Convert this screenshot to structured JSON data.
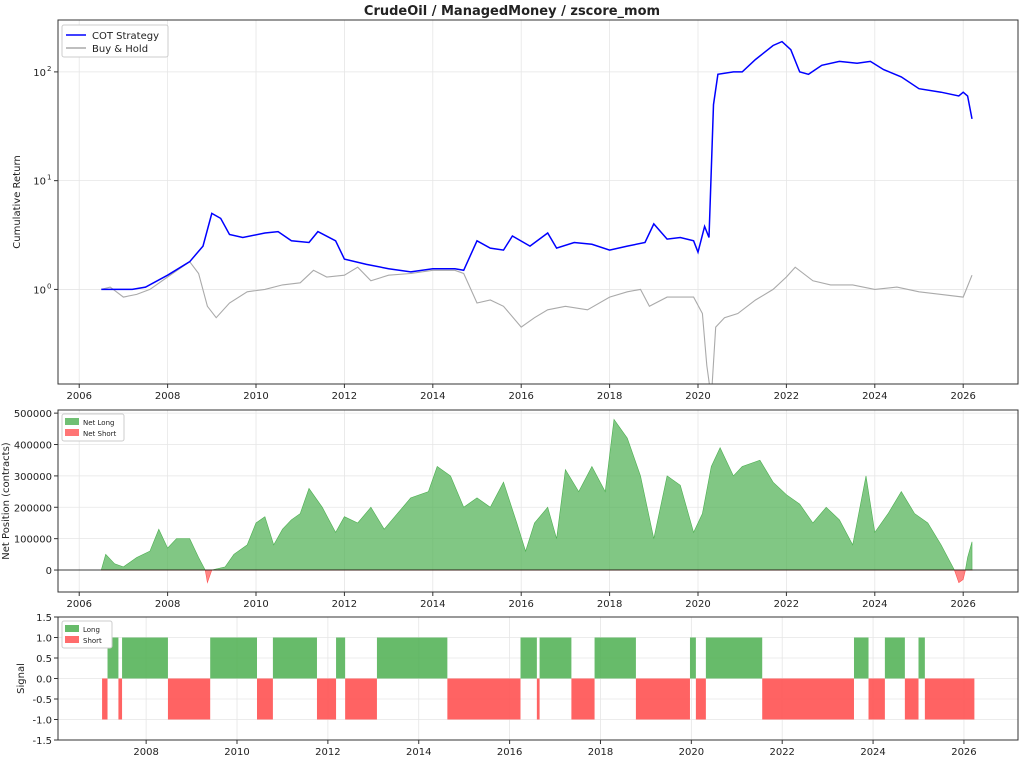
{
  "title": "CrudeOil / ManagedMoney / zscore_mom",
  "colors": {
    "strategy": "#0000ff",
    "buyhold": "#aaaaaa",
    "long": "#4caf50",
    "short": "#ff5252",
    "grid": "#e6e6e6"
  },
  "chart_data": [
    {
      "type": "line",
      "ylabel": "Cumulative Return",
      "yscale": "log",
      "ylim": [
        0.135,
        300
      ],
      "xlim": [
        2005.52,
        2027.24
      ],
      "yticks": [
        {
          "v": 1,
          "label": "10",
          "exp": "0"
        },
        {
          "v": 10,
          "label": "10",
          "exp": "1"
        },
        {
          "v": 100,
          "label": "10",
          "exp": "2"
        }
      ],
      "xticks": [
        "2006",
        "2008",
        "2010",
        "2012",
        "2014",
        "2016",
        "2018",
        "2020",
        "2022",
        "2024",
        "2026"
      ],
      "grid": true,
      "legend_position": "top-left",
      "series": [
        {
          "name": "COT Strategy",
          "color_key": "strategy",
          "points": [
            [
              2006.5,
              1.0
            ],
            [
              2007.2,
              1.0
            ],
            [
              2007.5,
              1.05
            ],
            [
              2008,
              1.35
            ],
            [
              2008.5,
              1.8
            ],
            [
              2008.8,
              2.5
            ],
            [
              2009.0,
              5.0
            ],
            [
              2009.2,
              4.5
            ],
            [
              2009.4,
              3.2
            ],
            [
              2009.7,
              3.0
            ],
            [
              2010.2,
              3.3
            ],
            [
              2010.5,
              3.4
            ],
            [
              2010.8,
              2.8
            ],
            [
              2011.2,
              2.7
            ],
            [
              2011.4,
              3.4
            ],
            [
              2011.8,
              2.8
            ],
            [
              2012.0,
              1.9
            ],
            [
              2012.5,
              1.7
            ],
            [
              2013,
              1.55
            ],
            [
              2013.5,
              1.45
            ],
            [
              2014,
              1.55
            ],
            [
              2014.5,
              1.55
            ],
            [
              2014.7,
              1.5
            ],
            [
              2015.0,
              2.8
            ],
            [
              2015.3,
              2.4
            ],
            [
              2015.6,
              2.3
            ],
            [
              2015.8,
              3.1
            ],
            [
              2016.2,
              2.5
            ],
            [
              2016.6,
              3.3
            ],
            [
              2016.8,
              2.4
            ],
            [
              2017.2,
              2.7
            ],
            [
              2017.6,
              2.6
            ],
            [
              2018,
              2.3
            ],
            [
              2018.4,
              2.5
            ],
            [
              2018.8,
              2.7
            ],
            [
              2019.0,
              4.0
            ],
            [
              2019.3,
              2.9
            ],
            [
              2019.6,
              3.0
            ],
            [
              2019.9,
              2.8
            ],
            [
              2020.0,
              2.2
            ],
            [
              2020.15,
              3.8
            ],
            [
              2020.25,
              3.0
            ],
            [
              2020.35,
              50
            ],
            [
              2020.45,
              95
            ],
            [
              2020.8,
              100
            ],
            [
              2021,
              100
            ],
            [
              2021.3,
              130
            ],
            [
              2021.7,
              175
            ],
            [
              2021.9,
              190
            ],
            [
              2022.1,
              160
            ],
            [
              2022.3,
              100
            ],
            [
              2022.5,
              95
            ],
            [
              2022.8,
              115
            ],
            [
              2023.2,
              125
            ],
            [
              2023.6,
              120
            ],
            [
              2023.9,
              125
            ],
            [
              2024.2,
              105
            ],
            [
              2024.6,
              90
            ],
            [
              2025,
              70
            ],
            [
              2025.5,
              65
            ],
            [
              2025.9,
              60
            ],
            [
              2026.0,
              65
            ],
            [
              2026.1,
              60
            ],
            [
              2026.2,
              37
            ]
          ]
        },
        {
          "name": "Buy & Hold",
          "color_key": "buyhold",
          "points": [
            [
              2006.5,
              1.0
            ],
            [
              2006.7,
              1.05
            ],
            [
              2007,
              0.85
            ],
            [
              2007.3,
              0.9
            ],
            [
              2007.6,
              1.0
            ],
            [
              2008,
              1.3
            ],
            [
              2008.5,
              1.8
            ],
            [
              2008.7,
              1.4
            ],
            [
              2008.9,
              0.7
            ],
            [
              2009.1,
              0.55
            ],
            [
              2009.4,
              0.75
            ],
            [
              2009.8,
              0.95
            ],
            [
              2010.2,
              1.0
            ],
            [
              2010.6,
              1.1
            ],
            [
              2011.0,
              1.15
            ],
            [
              2011.3,
              1.5
            ],
            [
              2011.6,
              1.3
            ],
            [
              2012.0,
              1.35
            ],
            [
              2012.3,
              1.6
            ],
            [
              2012.6,
              1.2
            ],
            [
              2013,
              1.35
            ],
            [
              2013.5,
              1.4
            ],
            [
              2014,
              1.5
            ],
            [
              2014.5,
              1.5
            ],
            [
              2014.7,
              1.4
            ],
            [
              2015.0,
              0.75
            ],
            [
              2015.3,
              0.8
            ],
            [
              2015.6,
              0.7
            ],
            [
              2016.0,
              0.45
            ],
            [
              2016.3,
              0.55
            ],
            [
              2016.6,
              0.65
            ],
            [
              2017,
              0.7
            ],
            [
              2017.5,
              0.65
            ],
            [
              2018,
              0.85
            ],
            [
              2018.4,
              0.95
            ],
            [
              2018.7,
              1.0
            ],
            [
              2018.9,
              0.7
            ],
            [
              2019.3,
              0.85
            ],
            [
              2019.7,
              0.85
            ],
            [
              2019.9,
              0.85
            ],
            [
              2020.1,
              0.6
            ],
            [
              2020.2,
              0.2
            ],
            [
              2020.3,
              0.1
            ],
            [
              2020.4,
              0.45
            ],
            [
              2020.6,
              0.55
            ],
            [
              2020.9,
              0.6
            ],
            [
              2021.3,
              0.8
            ],
            [
              2021.7,
              1.0
            ],
            [
              2022.0,
              1.3
            ],
            [
              2022.2,
              1.6
            ],
            [
              2022.6,
              1.2
            ],
            [
              2023,
              1.1
            ],
            [
              2023.5,
              1.1
            ],
            [
              2024,
              1.0
            ],
            [
              2024.5,
              1.05
            ],
            [
              2025,
              0.95
            ],
            [
              2025.5,
              0.9
            ],
            [
              2026,
              0.85
            ],
            [
              2026.2,
              1.35
            ]
          ]
        }
      ]
    },
    {
      "type": "area",
      "ylabel": "Net Position (contracts)",
      "ylim": [
        -70000,
        510000
      ],
      "xlim": [
        2005.52,
        2027.24
      ],
      "yticks": [
        "0",
        "100000",
        "200000",
        "300000",
        "400000",
        "500000"
      ],
      "xticks": [
        "2006",
        "2008",
        "2010",
        "2012",
        "2014",
        "2016",
        "2018",
        "2020",
        "2022",
        "2024",
        "2026"
      ],
      "grid": true,
      "legend_position": "top-left",
      "legend": [
        "Net Long",
        "Net Short"
      ],
      "points": [
        [
          2006.5,
          0
        ],
        [
          2006.6,
          50000
        ],
        [
          2006.8,
          20000
        ],
        [
          2007.0,
          10000
        ],
        [
          2007.3,
          40000
        ],
        [
          2007.6,
          60000
        ],
        [
          2007.8,
          130000
        ],
        [
          2008.0,
          70000
        ],
        [
          2008.2,
          100000
        ],
        [
          2008.5,
          100000
        ],
        [
          2008.7,
          40000
        ],
        [
          2008.85,
          0
        ],
        [
          2008.9,
          -40000
        ],
        [
          2009.0,
          0
        ],
        [
          2009.3,
          10000
        ],
        [
          2009.5,
          50000
        ],
        [
          2009.8,
          80000
        ],
        [
          2010.0,
          150000
        ],
        [
          2010.2,
          170000
        ],
        [
          2010.4,
          80000
        ],
        [
          2010.6,
          130000
        ],
        [
          2010.8,
          160000
        ],
        [
          2011.0,
          180000
        ],
        [
          2011.2,
          260000
        ],
        [
          2011.5,
          200000
        ],
        [
          2011.8,
          120000
        ],
        [
          2012.0,
          170000
        ],
        [
          2012.3,
          150000
        ],
        [
          2012.6,
          200000
        ],
        [
          2012.9,
          130000
        ],
        [
          2013.2,
          180000
        ],
        [
          2013.5,
          230000
        ],
        [
          2013.9,
          250000
        ],
        [
          2014.1,
          330000
        ],
        [
          2014.4,
          300000
        ],
        [
          2014.7,
          200000
        ],
        [
          2015.0,
          230000
        ],
        [
          2015.3,
          200000
        ],
        [
          2015.6,
          280000
        ],
        [
          2015.9,
          150000
        ],
        [
          2016.1,
          60000
        ],
        [
          2016.3,
          150000
        ],
        [
          2016.6,
          200000
        ],
        [
          2016.8,
          100000
        ],
        [
          2017.0,
          320000
        ],
        [
          2017.3,
          250000
        ],
        [
          2017.6,
          330000
        ],
        [
          2017.9,
          250000
        ],
        [
          2018.1,
          480000
        ],
        [
          2018.4,
          420000
        ],
        [
          2018.7,
          300000
        ],
        [
          2019.0,
          100000
        ],
        [
          2019.3,
          300000
        ],
        [
          2019.6,
          270000
        ],
        [
          2019.9,
          120000
        ],
        [
          2020.1,
          180000
        ],
        [
          2020.3,
          330000
        ],
        [
          2020.5,
          390000
        ],
        [
          2020.8,
          300000
        ],
        [
          2021.0,
          330000
        ],
        [
          2021.4,
          350000
        ],
        [
          2021.7,
          280000
        ],
        [
          2022.0,
          240000
        ],
        [
          2022.3,
          210000
        ],
        [
          2022.6,
          150000
        ],
        [
          2022.9,
          200000
        ],
        [
          2023.2,
          160000
        ],
        [
          2023.5,
          80000
        ],
        [
          2023.8,
          300000
        ],
        [
          2024.0,
          120000
        ],
        [
          2024.3,
          180000
        ],
        [
          2024.6,
          250000
        ],
        [
          2024.9,
          180000
        ],
        [
          2025.2,
          150000
        ],
        [
          2025.5,
          80000
        ],
        [
          2025.8,
          0
        ],
        [
          2025.9,
          -40000
        ],
        [
          2026.0,
          -30000
        ],
        [
          2026.05,
          0
        ],
        [
          2026.1,
          40000
        ],
        [
          2026.2,
          90000
        ]
      ]
    },
    {
      "type": "bar",
      "ylabel": "Signal",
      "ylim": [
        -1.5,
        1.5
      ],
      "xlim": [
        2006.06,
        2027.19
      ],
      "yticks": [
        "-1.5",
        "-1.0",
        "-0.5",
        "0.0",
        "0.5",
        "1.0",
        "1.5"
      ],
      "xticks": [
        "2008",
        "2010",
        "2012",
        "2014",
        "2016",
        "2018",
        "2020",
        "2022",
        "2024",
        "2026"
      ],
      "grid": true,
      "legend_position": "top-left",
      "legend": [
        "Long",
        "Short"
      ],
      "segments": [
        [
          2007.03,
          2007.15,
          -1
        ],
        [
          2007.15,
          2007.39,
          1
        ],
        [
          2007.39,
          2007.47,
          -1
        ],
        [
          2007.47,
          2008.48,
          1
        ],
        [
          2008.48,
          2009.41,
          -1
        ],
        [
          2009.41,
          2010.44,
          1
        ],
        [
          2010.44,
          2010.79,
          -1
        ],
        [
          2010.79,
          2011.76,
          1
        ],
        [
          2011.76,
          2012.18,
          -1
        ],
        [
          2012.18,
          2012.38,
          1
        ],
        [
          2012.38,
          2013.08,
          -1
        ],
        [
          2013.08,
          2014.63,
          1
        ],
        [
          2014.63,
          2016.24,
          -1
        ],
        [
          2016.24,
          2016.6,
          1
        ],
        [
          2016.6,
          2016.66,
          -1
        ],
        [
          2016.66,
          2017.36,
          1
        ],
        [
          2017.36,
          2017.87,
          -1
        ],
        [
          2017.87,
          2018.78,
          1
        ],
        [
          2018.78,
          2019.97,
          -1
        ],
        [
          2019.97,
          2020.1,
          1
        ],
        [
          2020.1,
          2020.32,
          -1
        ],
        [
          2020.32,
          2021.56,
          1
        ],
        [
          2021.56,
          2023.58,
          -1
        ],
        [
          2023.58,
          2023.9,
          1
        ],
        [
          2023.9,
          2024.26,
          -1
        ],
        [
          2024.26,
          2024.7,
          1
        ],
        [
          2024.7,
          2025.0,
          -1
        ],
        [
          2025.0,
          2025.14,
          1
        ],
        [
          2025.14,
          2026.23,
          -1
        ]
      ]
    }
  ]
}
